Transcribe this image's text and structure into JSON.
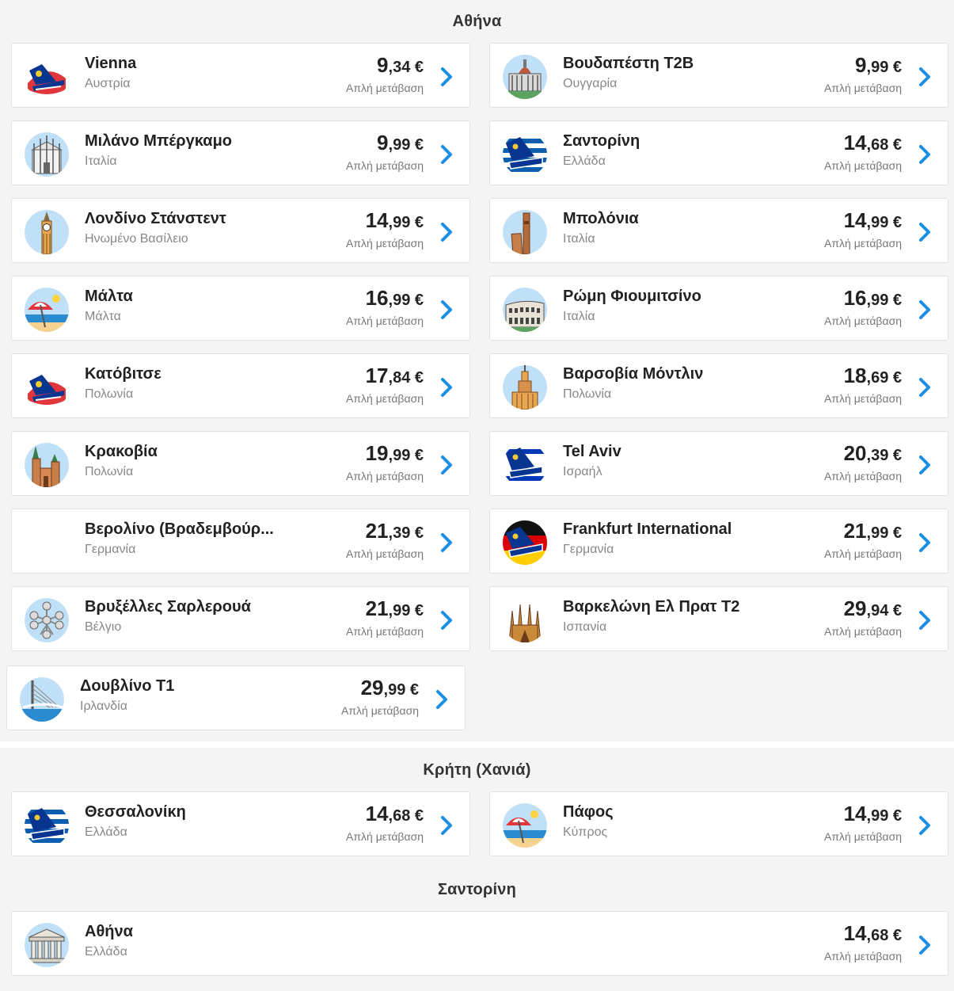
{
  "sections": [
    {
      "title": "Αθήνα",
      "cards": [
        {
          "name": "Vienna",
          "country": "Αυστρία",
          "price_int": "9",
          "price_dec": ",34 €",
          "fare": "Απλή μετάβαση",
          "icon": "plane-icon"
        },
        {
          "name": "Βουδαπέστη T2B",
          "country": "Ουγγαρία",
          "price_int": "9",
          "price_dec": ",99 €",
          "fare": "Απλή μετάβαση",
          "icon": "parliament-icon"
        },
        {
          "name": "Μιλάνο Μπέργκαμο",
          "country": "Ιταλία",
          "price_int": "9",
          "price_dec": ",99 €",
          "fare": "Απλή μετάβαση",
          "icon": "cathedral-icon"
        },
        {
          "name": "Σαντορίνη",
          "country": "Ελλάδα",
          "price_int": "14",
          "price_dec": ",68 €",
          "fare": "Απλή μετάβαση",
          "icon": "plane-greece-icon"
        },
        {
          "name": "Λονδίνο Στάνστεντ",
          "country": "Ηνωμένο Βασίλειο",
          "price_int": "14",
          "price_dec": ",99 €",
          "fare": "Απλή μετάβαση",
          "icon": "big-ben-icon"
        },
        {
          "name": "Μπολόνια",
          "country": "Ιταλία",
          "price_int": "14",
          "price_dec": ",99 €",
          "fare": "Απλή μετάβαση",
          "icon": "towers-icon"
        },
        {
          "name": "Μάλτα",
          "country": "Μάλτα",
          "price_int": "16",
          "price_dec": ",99 €",
          "fare": "Απλή μετάβαση",
          "icon": "beach-umbrella-icon"
        },
        {
          "name": "Ρώμη Φιουμιτσίνο",
          "country": "Ιταλία",
          "price_int": "16",
          "price_dec": ",99 €",
          "fare": "Απλή μετάβαση",
          "icon": "colosseum-icon"
        },
        {
          "name": "Κατόβιτσε",
          "country": "Πολωνία",
          "price_int": "17",
          "price_dec": ",84 €",
          "fare": "Απλή μετάβαση",
          "icon": "plane-icon"
        },
        {
          "name": "Βαρσοβία Μόντλιν",
          "country": "Πολωνία",
          "price_int": "18",
          "price_dec": ",69 €",
          "fare": "Απλή μετάβαση",
          "icon": "palace-tower-icon"
        },
        {
          "name": "Κρακοβία",
          "country": "Πολωνία",
          "price_int": "19",
          "price_dec": ",99 €",
          "fare": "Απλή μετάβαση",
          "icon": "basilica-icon"
        },
        {
          "name": "Tel Aviv",
          "country": "Ισραήλ",
          "price_int": "20",
          "price_dec": ",39 €",
          "fare": "Απλή μετάβαση",
          "icon": "plane-israel-icon"
        },
        {
          "name": "Βερολίνο (Βραδεμβούρ...",
          "country": "Γερμανία",
          "price_int": "21",
          "price_dec": ",39 €",
          "fare": "Απλή μετάβαση",
          "icon": "none"
        },
        {
          "name": "Frankfurt International",
          "country": "Γερμανία",
          "price_int": "21",
          "price_dec": ",99 €",
          "fare": "Απλή μετάβαση",
          "icon": "plane-germany-icon"
        },
        {
          "name": "Βρυξέλλες Σαρλερουά",
          "country": "Βέλγιο",
          "price_int": "21",
          "price_dec": ",99 €",
          "fare": "Απλή μετάβαση",
          "icon": "atomium-icon"
        },
        {
          "name": "Βαρκελώνη Ελ Πρατ T2",
          "country": "Ισπανία",
          "price_int": "29",
          "price_dec": ",94 €",
          "fare": "Απλή μετάβαση",
          "icon": "sagrada-familia-icon"
        },
        {
          "name": "Δουβλίνο T1",
          "country": "Ιρλανδία",
          "price_int": "29",
          "price_dec": ",99 €",
          "fare": "Απλή μετάβαση",
          "icon": "bridge-icon"
        }
      ]
    },
    {
      "title": "Κρήτη (Χανιά)",
      "cards": [
        {
          "name": "Θεσσαλονίκη",
          "country": "Ελλάδα",
          "price_int": "14",
          "price_dec": ",68 €",
          "fare": "Απλή μετάβαση",
          "icon": "plane-greece-icon"
        },
        {
          "name": "Πάφος",
          "country": "Κύπρος",
          "price_int": "14",
          "price_dec": ",99 €",
          "fare": "Απλή μετάβαση",
          "icon": "beach-umbrella-icon"
        }
      ]
    },
    {
      "title": "Σαντορίνη",
      "cards": [
        {
          "name": "Αθήνα",
          "country": "Ελλάδα",
          "price_int": "14",
          "price_dec": ",68 €",
          "fare": "Απλή μετάβαση",
          "icon": "parthenon-icon"
        }
      ]
    }
  ],
  "colors": {
    "arrow": "#1a8fe3",
    "plane_blue": "#073590",
    "plane_red": "#e3363c",
    "sky": "#bfe0f7"
  }
}
